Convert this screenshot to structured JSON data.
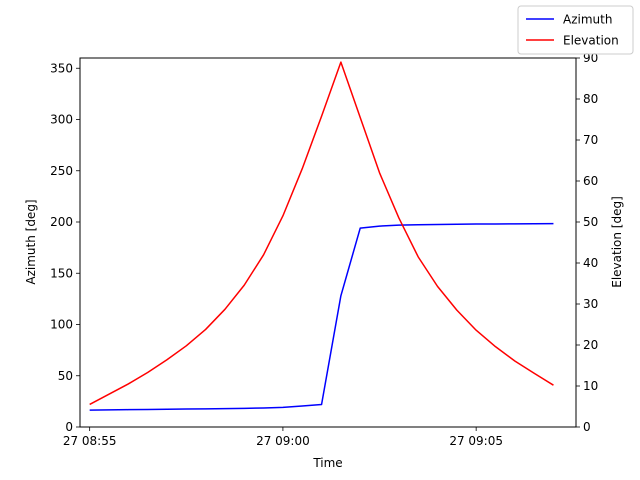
{
  "chart_data": {
    "type": "line",
    "title": "",
    "xlabel": "Time",
    "ylabel_left": "Azimuth [deg]",
    "ylabel_right": "Elevation [deg]",
    "x": [
      "08:55:00",
      "08:55:30",
      "08:56:00",
      "08:56:30",
      "08:57:00",
      "08:57:30",
      "08:58:00",
      "08:58:30",
      "08:59:00",
      "08:59:30",
      "09:00:00",
      "09:00:30",
      "09:01:00",
      "09:01:30",
      "09:02:00",
      "09:02:30",
      "09:03:00",
      "09:03:30",
      "09:04:00",
      "09:04:30",
      "09:05:00",
      "09:05:30",
      "09:06:00",
      "09:06:30",
      "09:07:00"
    ],
    "xlim": [
      "08:54:45",
      "09:07:35"
    ],
    "xticks": [
      {
        "value": "08:55:00",
        "label": "27 08:55"
      },
      {
        "value": "09:00:00",
        "label": "27 09:00"
      },
      {
        "value": "09:05:00",
        "label": "27 09:05"
      }
    ],
    "ylim_left": [
      0,
      360
    ],
    "yticks_left": [
      0,
      50,
      100,
      150,
      200,
      250,
      300,
      350
    ],
    "ylim_right": [
      0,
      90
    ],
    "yticks_right": [
      0,
      10,
      20,
      30,
      40,
      50,
      60,
      70,
      80,
      90
    ],
    "series": [
      {
        "name": "Azimuth",
        "axis": "left",
        "color": "#0000ff",
        "values": [
          16.5,
          16.7,
          16.9,
          17.1,
          17.3,
          17.5,
          17.7,
          17.9,
          18.2,
          18.6,
          19.1,
          20.5,
          22,
          128,
          194,
          196,
          197,
          197.3,
          197.6,
          197.8,
          198,
          198.1,
          198.2,
          198.3,
          198.4
        ]
      },
      {
        "name": "Elevation",
        "axis": "right",
        "color": "#ff0000",
        "values": [
          5.5,
          8,
          10.5,
          13.3,
          16.4,
          19.8,
          23.8,
          28.7,
          34.6,
          42,
          51.5,
          63,
          75.8,
          89,
          75.5,
          62,
          51,
          41.5,
          34.3,
          28.5,
          23.6,
          19.6,
          16.1,
          13.1,
          10.2
        ]
      }
    ],
    "legend_position": "top-right"
  }
}
